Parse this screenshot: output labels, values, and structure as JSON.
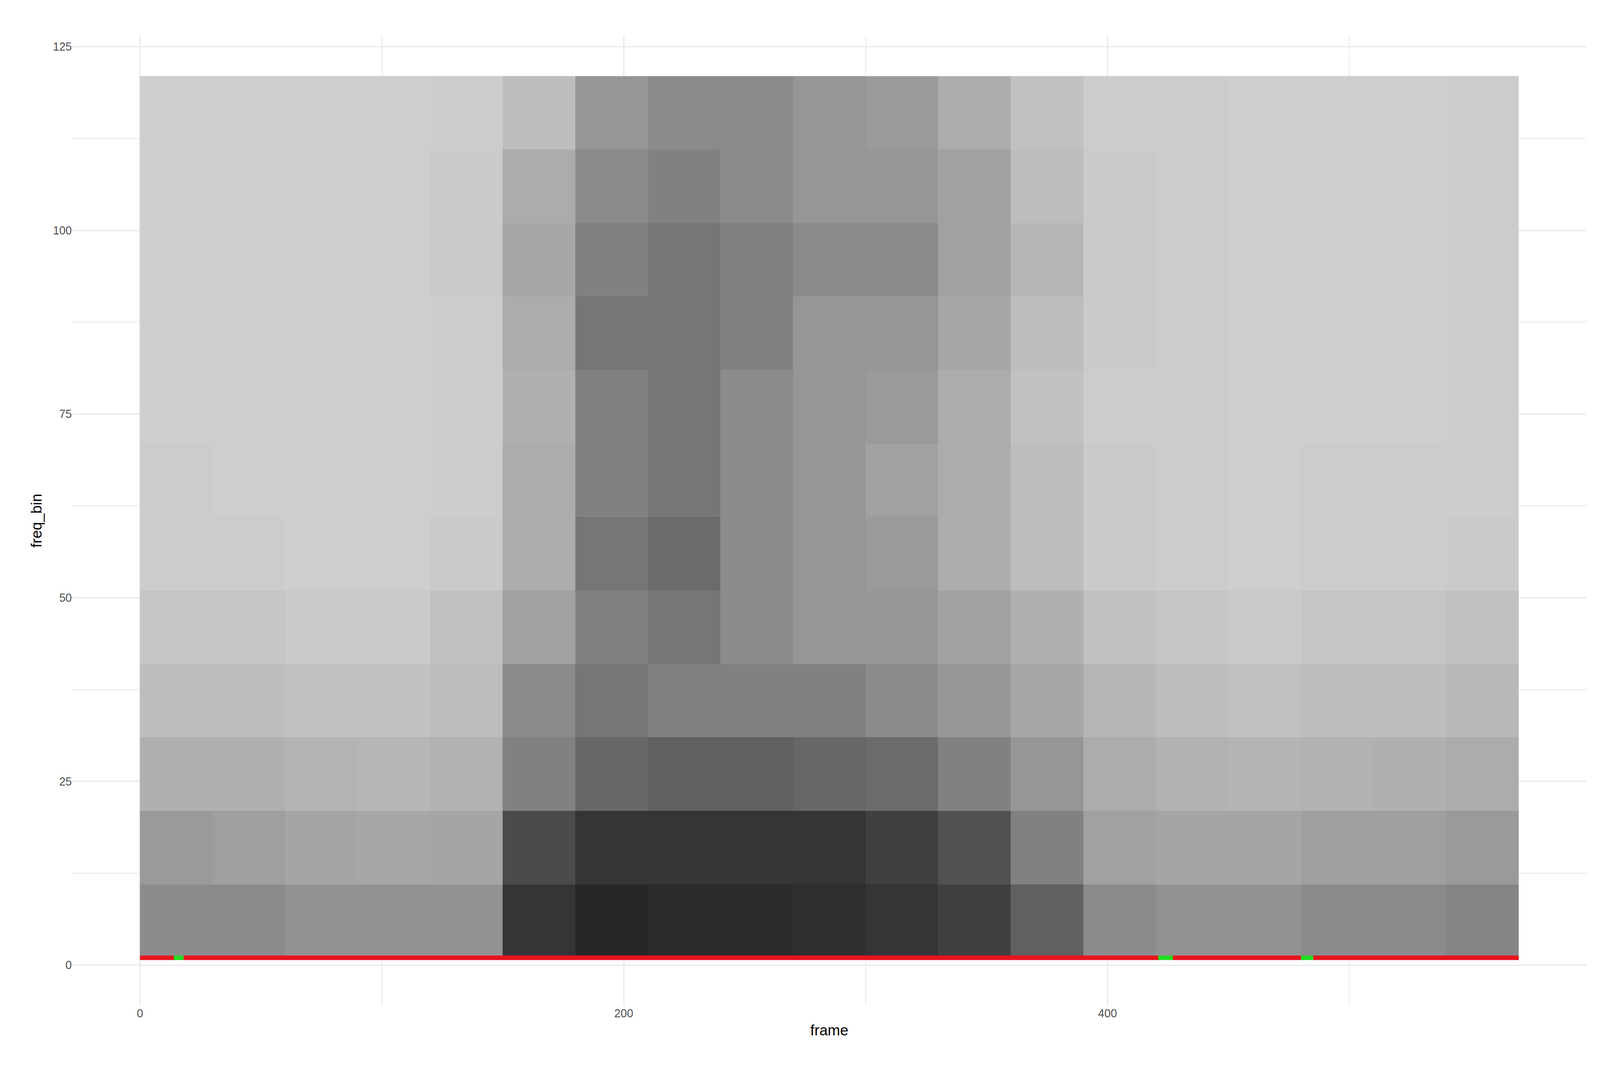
{
  "chart_data": {
    "type": "heatmap",
    "x_label": "frame",
    "y_label": "freq_bin",
    "xlim": [
      -28,
      598
    ],
    "ylim": [
      -5.5,
      126.5
    ],
    "xticks": [
      0,
      200,
      400
    ],
    "yticks": [
      0,
      25,
      50,
      75,
      100,
      125
    ],
    "grid": true,
    "heatmap": {
      "x": [
        15,
        45,
        75,
        105,
        135,
        165,
        195,
        225,
        255,
        285,
        315,
        345,
        375,
        405,
        435,
        465,
        495,
        525,
        555
      ],
      "y": [
        6,
        16,
        26,
        36,
        46,
        56,
        66,
        76,
        86,
        96,
        106,
        116
      ],
      "zlim": [
        0,
        1
      ],
      "z": [
        [
          0.45,
          0.45,
          0.42,
          0.42,
          0.42,
          0.85,
          0.92,
          0.9,
          0.9,
          0.88,
          0.85,
          0.8,
          0.65,
          0.45,
          0.42,
          0.42,
          0.45,
          0.45,
          0.48
        ],
        [
          0.38,
          0.36,
          0.33,
          0.32,
          0.33,
          0.75,
          0.85,
          0.85,
          0.85,
          0.85,
          0.8,
          0.72,
          0.5,
          0.35,
          0.33,
          0.33,
          0.36,
          0.36,
          0.38
        ],
        [
          0.28,
          0.28,
          0.26,
          0.25,
          0.27,
          0.5,
          0.62,
          0.65,
          0.65,
          0.62,
          0.6,
          0.5,
          0.4,
          0.3,
          0.27,
          0.26,
          0.27,
          0.28,
          0.3
        ],
        [
          0.22,
          0.22,
          0.2,
          0.2,
          0.22,
          0.45,
          0.55,
          0.5,
          0.5,
          0.5,
          0.45,
          0.4,
          0.32,
          0.25,
          0.22,
          0.2,
          0.22,
          0.22,
          0.24
        ],
        [
          0.18,
          0.18,
          0.16,
          0.16,
          0.2,
          0.35,
          0.5,
          0.55,
          0.45,
          0.4,
          0.4,
          0.35,
          0.28,
          0.2,
          0.18,
          0.16,
          0.18,
          0.18,
          0.2
        ],
        [
          0.15,
          0.15,
          0.14,
          0.14,
          0.16,
          0.3,
          0.55,
          0.6,
          0.45,
          0.4,
          0.38,
          0.3,
          0.22,
          0.16,
          0.15,
          0.14,
          0.15,
          0.15,
          0.16
        ],
        [
          0.15,
          0.14,
          0.14,
          0.14,
          0.15,
          0.3,
          0.5,
          0.55,
          0.45,
          0.4,
          0.35,
          0.3,
          0.22,
          0.16,
          0.15,
          0.14,
          0.15,
          0.15,
          0.15
        ],
        [
          0.14,
          0.14,
          0.14,
          0.14,
          0.15,
          0.28,
          0.5,
          0.55,
          0.45,
          0.4,
          0.38,
          0.3,
          0.2,
          0.15,
          0.15,
          0.14,
          0.14,
          0.14,
          0.15
        ],
        [
          0.14,
          0.14,
          0.14,
          0.14,
          0.15,
          0.3,
          0.55,
          0.55,
          0.5,
          0.4,
          0.4,
          0.32,
          0.22,
          0.16,
          0.15,
          0.14,
          0.14,
          0.14,
          0.15
        ],
        [
          0.14,
          0.14,
          0.14,
          0.14,
          0.16,
          0.32,
          0.5,
          0.55,
          0.5,
          0.45,
          0.45,
          0.35,
          0.25,
          0.16,
          0.15,
          0.14,
          0.14,
          0.14,
          0.15
        ],
        [
          0.14,
          0.14,
          0.14,
          0.14,
          0.16,
          0.3,
          0.45,
          0.5,
          0.45,
          0.4,
          0.4,
          0.35,
          0.22,
          0.16,
          0.15,
          0.14,
          0.14,
          0.14,
          0.15
        ],
        [
          0.14,
          0.14,
          0.14,
          0.14,
          0.15,
          0.22,
          0.4,
          0.45,
          0.45,
          0.4,
          0.38,
          0.3,
          0.2,
          0.15,
          0.15,
          0.14,
          0.14,
          0.14,
          0.15
        ]
      ]
    },
    "series": [
      {
        "type": "line",
        "color": "#e8141c",
        "x": [
          0,
          14,
          null,
          18,
          421,
          null,
          427,
          480,
          null,
          485,
          570
        ],
        "y": [
          1,
          1,
          null,
          1,
          1,
          null,
          1,
          1,
          null,
          1,
          1
        ]
      },
      {
        "type": "line",
        "color": "#22dd22",
        "x": [
          14,
          18,
          null,
          421,
          427,
          null,
          480,
          485
        ],
        "y": [
          1,
          1,
          null,
          1,
          1,
          null,
          1,
          1
        ]
      }
    ]
  }
}
